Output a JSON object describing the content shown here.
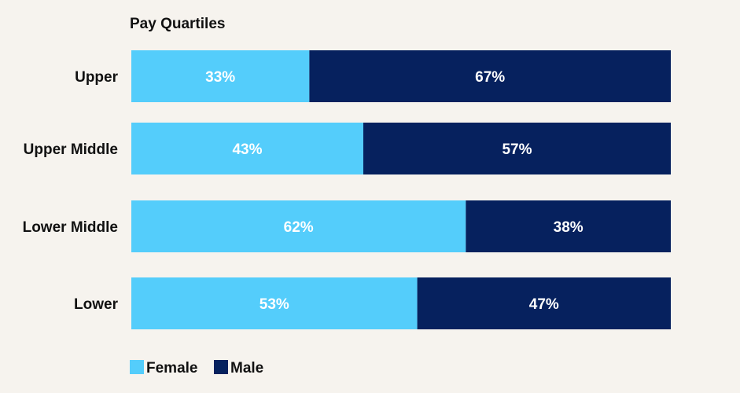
{
  "chart_data": {
    "type": "bar",
    "orientation": "horizontal",
    "stacked": true,
    "title": "Pay Quartiles",
    "categories": [
      "Upper",
      "Upper Middle",
      "Lower Middle",
      "Lower"
    ],
    "series": [
      {
        "name": "Female",
        "values": [
          33,
          43,
          62,
          53
        ],
        "labels": [
          "33%",
          "43%",
          "62%",
          "53%"
        ],
        "color": "#54cdfb"
      },
      {
        "name": "Male",
        "values": [
          67,
          57,
          38,
          47
        ],
        "labels": [
          "67%",
          "57%",
          "38%",
          "47%"
        ],
        "color": "#06215e"
      }
    ],
    "xlim": [
      0,
      100
    ],
    "grid": false,
    "legend_position": "bottom-left"
  }
}
